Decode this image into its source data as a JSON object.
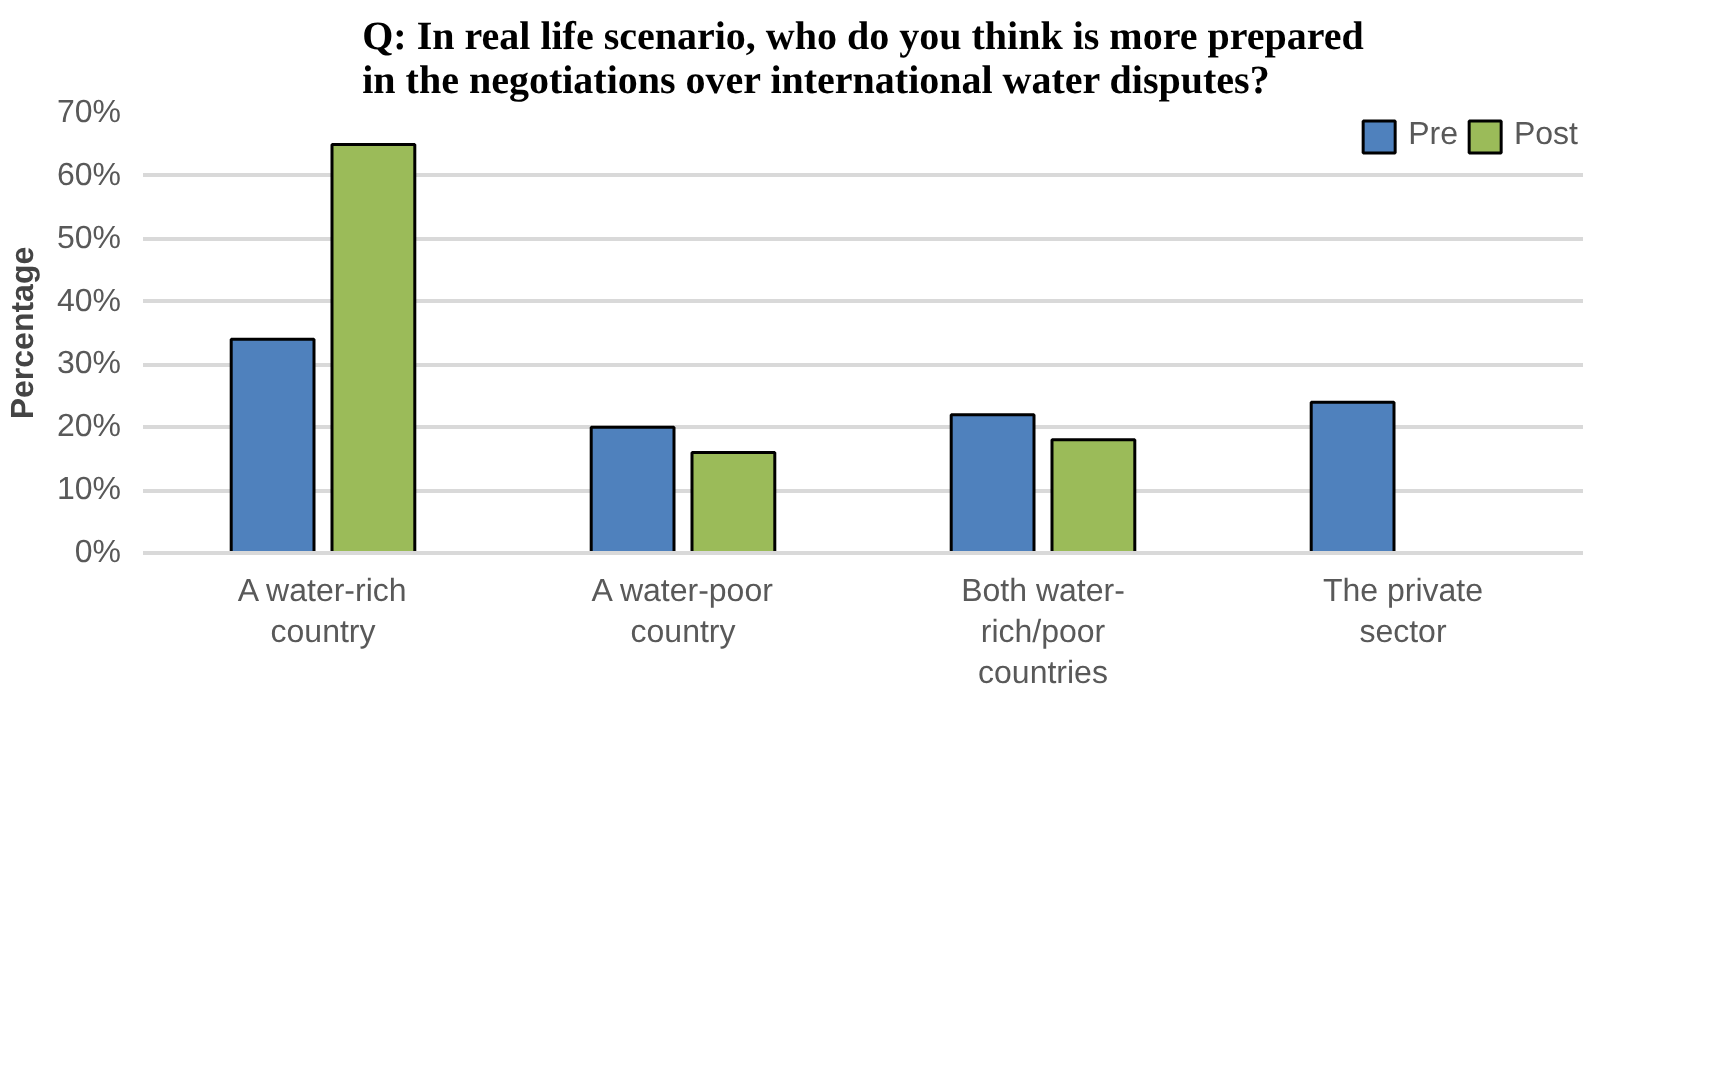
{
  "chart_data": {
    "type": "bar",
    "title": "Q: In real life scenario, who do you think is more prepared\nin the negotiations over international water disputes?",
    "ylabel": "Percentage",
    "categories": [
      "A water-rich\ncountry",
      "A water-poor\ncountry",
      "Both water-\nrich/poor\ncountries",
      "The private\nsector"
    ],
    "series": [
      {
        "name": "Pre",
        "color": "#4f81bd",
        "values": [
          34,
          20,
          22,
          24
        ]
      },
      {
        "name": "Post",
        "color": "#9bbb59",
        "values": [
          65,
          16,
          18,
          null
        ]
      }
    ],
    "ylim": [
      0,
      70
    ],
    "yticks": [
      {
        "value": 0,
        "label": "0%"
      },
      {
        "value": 10,
        "label": "10%"
      },
      {
        "value": 20,
        "label": "20%"
      },
      {
        "value": 30,
        "label": "30%"
      },
      {
        "value": 40,
        "label": "40%"
      },
      {
        "value": 50,
        "label": "50%"
      },
      {
        "value": 60,
        "label": "60%"
      },
      {
        "value": 70,
        "label": "70%"
      }
    ],
    "grid": "y",
    "legend": "top right"
  }
}
